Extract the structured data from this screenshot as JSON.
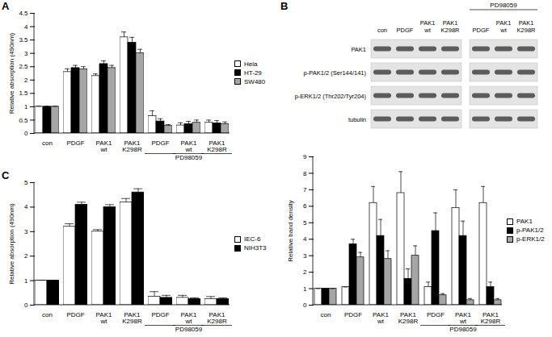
{
  "chart_data": [
    {
      "type": "bar",
      "title": "A",
      "categories": [
        "con",
        "PDGF",
        "PAK1 wt",
        "PAK1 K298R",
        "PDGF",
        "PAK1 wt",
        "PAK1 K298R"
      ],
      "y_label": "Relative absorption (490nm)",
      "ylim": [
        0,
        4.5
      ],
      "yticks": [
        0,
        0.5,
        1,
        1.5,
        2,
        2.5,
        3,
        3.5,
        4,
        4.5
      ],
      "legend": "right",
      "annotations": [
        {
          "text": "PD98059",
          "categories": [
            4,
            5,
            6
          ]
        }
      ],
      "series": [
        {
          "name": "Hela",
          "color": "#ffffff",
          "values": [
            1,
            2.3,
            2.15,
            3.6,
            0.65,
            0.3,
            0.4
          ],
          "errors": [
            0.02,
            0.12,
            0.08,
            0.2,
            0.2,
            0.1,
            0.1
          ]
        },
        {
          "name": "HT-29",
          "color": "#000000",
          "values": [
            1,
            2.45,
            2.6,
            3.4,
            0.45,
            0.35,
            0.38
          ],
          "errors": [
            0.02,
            0.1,
            0.12,
            0.2,
            0.1,
            0.1,
            0.1
          ]
        },
        {
          "name": "SW480",
          "color": "#a6a6a6",
          "values": [
            1,
            2.4,
            2.45,
            3.0,
            0.28,
            0.4,
            0.35
          ],
          "errors": [
            0.02,
            0.1,
            0.1,
            0.15,
            0.05,
            0.1,
            0.08
          ]
        }
      ]
    },
    {
      "type": "bar",
      "categories": [
        "con",
        "PDGF",
        "PAK1 wt",
        "PAK1 K298R",
        "PDGF",
        "PAK1 wt",
        "PAK1 K298R"
      ],
      "y_label": "Relative band density",
      "ylim": [
        0,
        9
      ],
      "yticks": [
        0,
        1,
        2,
        3,
        4,
        5,
        6,
        7,
        8,
        9
      ],
      "legend": "right",
      "annotations": [
        {
          "text": "PD98059",
          "categories": [
            4,
            5,
            6
          ]
        }
      ],
      "series": [
        {
          "name": "PAK1",
          "color": "#ffffff",
          "values": [
            1,
            1.1,
            6.2,
            6.8,
            1.1,
            5.9,
            6.2
          ],
          "errors": [
            0,
            0,
            1.0,
            1.3,
            0.3,
            1.1,
            1.0
          ]
        },
        {
          "name": "p-PAK1/2",
          "color": "#000000",
          "values": [
            1,
            3.7,
            4.2,
            1.6,
            4.5,
            4.2,
            1.1
          ],
          "errors": [
            0,
            0.3,
            1.0,
            0.6,
            1.1,
            0.9,
            0.3
          ]
        },
        {
          "name": "p-ERK1/2",
          "color": "#a6a6a6",
          "values": [
            1,
            2.9,
            2.8,
            3.0,
            0.6,
            0.3,
            0.3
          ],
          "errors": [
            0,
            0.3,
            0.5,
            0.6,
            0.1,
            0.1,
            0.1
          ]
        }
      ]
    },
    {
      "type": "bar",
      "title": "C",
      "categories": [
        "con",
        "PDGF",
        "PAK1 wt",
        "PAK1 K298R",
        "PDGF",
        "PAK1 wt",
        "PAK1 K298R"
      ],
      "y_label": "Relative absorption (490nm)",
      "ylim": [
        0,
        5
      ],
      "yticks": [
        0,
        1,
        2,
        3,
        4,
        5
      ],
      "legend": "right",
      "annotations": [
        {
          "text": "PD98059",
          "categories": [
            4,
            5,
            6
          ]
        }
      ],
      "series": [
        {
          "name": "IEC-6",
          "color": "#ffffff",
          "values": [
            1,
            3.2,
            3.0,
            4.2,
            0.35,
            0.3,
            0.25
          ],
          "errors": [
            0.02,
            0.12,
            0.08,
            0.15,
            0.2,
            0.1,
            0.1
          ]
        },
        {
          "name": "NIH3T3",
          "color": "#000000",
          "values": [
            1,
            4.1,
            4.0,
            4.6,
            0.3,
            0.25,
            0.25
          ],
          "errors": [
            0.02,
            0.1,
            0.1,
            0.15,
            0.1,
            0.05,
            0.05
          ]
        }
      ]
    }
  ],
  "blot": {
    "title": "B",
    "group_label": "PD98059",
    "group_lanes": [
      4,
      5,
      6
    ],
    "lanes": [
      "con",
      "PDGF",
      "PAK1 wt",
      "PAK1 K298R",
      "PDGF",
      "PAK1 wt",
      "PAK1 K298R"
    ],
    "rows": [
      "PAK1",
      "p-PAK1/2 (Ser144/141)",
      "p-ERK1/2 (Thr202/Tyr204)",
      "tubulin"
    ]
  }
}
